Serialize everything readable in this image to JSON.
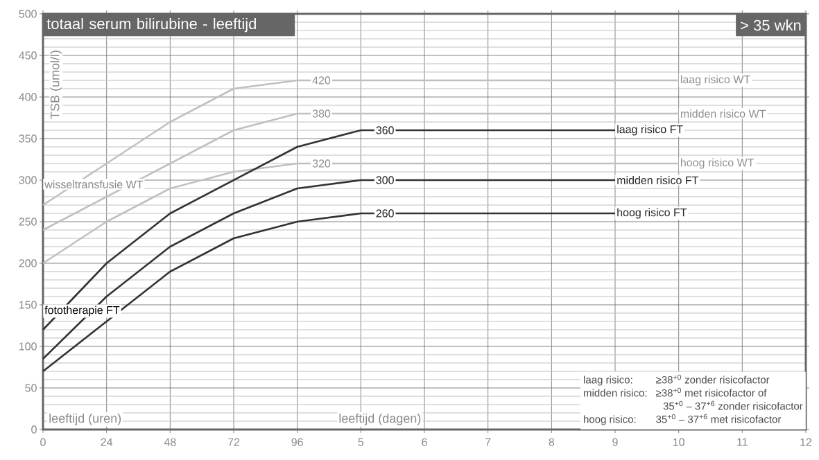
{
  "chart_data": {
    "type": "line",
    "title": "totaal serum bilirubine - leeftijd",
    "subtitle": "> 35 wkn",
    "xlabel": "leeftijd (uren)",
    "ylabel": "TSB (umol/l)",
    "categories": [
      "0",
      "24",
      "48",
      "72",
      "96",
      "5",
      "6",
      "7",
      "8",
      "9",
      "10",
      "11",
      "12"
    ],
    "ylim": [
      0,
      500
    ],
    "yticks": [
      0,
      50,
      100,
      150,
      200,
      250,
      300,
      350,
      400,
      450,
      500
    ],
    "grid": true,
    "series": [
      {
        "name": "laag risico WT",
        "color": "#c0c0c0",
        "values": [
          270,
          320,
          370,
          410,
          420,
          420,
          420,
          420,
          420,
          420,
          420,
          null,
          null
        ]
      },
      {
        "name": "midden risico WT",
        "color": "#c0c0c0",
        "values": [
          240,
          280,
          320,
          360,
          380,
          380,
          380,
          380,
          380,
          380,
          380,
          null,
          null
        ]
      },
      {
        "name": "hoog risico WT",
        "color": "#c0c0c0",
        "values": [
          200,
          250,
          290,
          310,
          320,
          320,
          320,
          320,
          320,
          320,
          320,
          null,
          null
        ]
      },
      {
        "name": "laag risico FT",
        "color": "#333333",
        "values": [
          120,
          200,
          260,
          300,
          340,
          360,
          360,
          360,
          360,
          360,
          null,
          null,
          null
        ]
      },
      {
        "name": "midden risico FT",
        "color": "#333333",
        "values": [
          85,
          160,
          220,
          260,
          290,
          300,
          300,
          300,
          300,
          300,
          null,
          null,
          null
        ]
      },
      {
        "name": "hoog risico FT",
        "color": "#333333",
        "values": [
          70,
          130,
          190,
          230,
          250,
          260,
          260,
          260,
          260,
          260,
          null,
          null,
          null
        ]
      }
    ],
    "annotations": [
      {
        "text": "420",
        "y": 420
      },
      {
        "text": "380",
        "y": 380
      },
      {
        "text": "320",
        "y": 320
      },
      {
        "text": "360",
        "y": 360
      },
      {
        "text": "300",
        "y": 300
      },
      {
        "text": "260",
        "y": 260
      },
      "wisseltransfusie WT",
      "fototherapie FT",
      "leeftijd (dagen)",
      "laag risico:",
      "≥38$^{+0}$ zonder risicofactor",
      "midden risico:",
      "≥38$^{+0}$ met risicofactor of",
      "35$^{+0}$ – 37$^{+6}$ zonder risicofactor",
      "hoog risico:",
      "35$^{+0}$ – 37$^{+6}$ met risicofactor"
    ]
  }
}
